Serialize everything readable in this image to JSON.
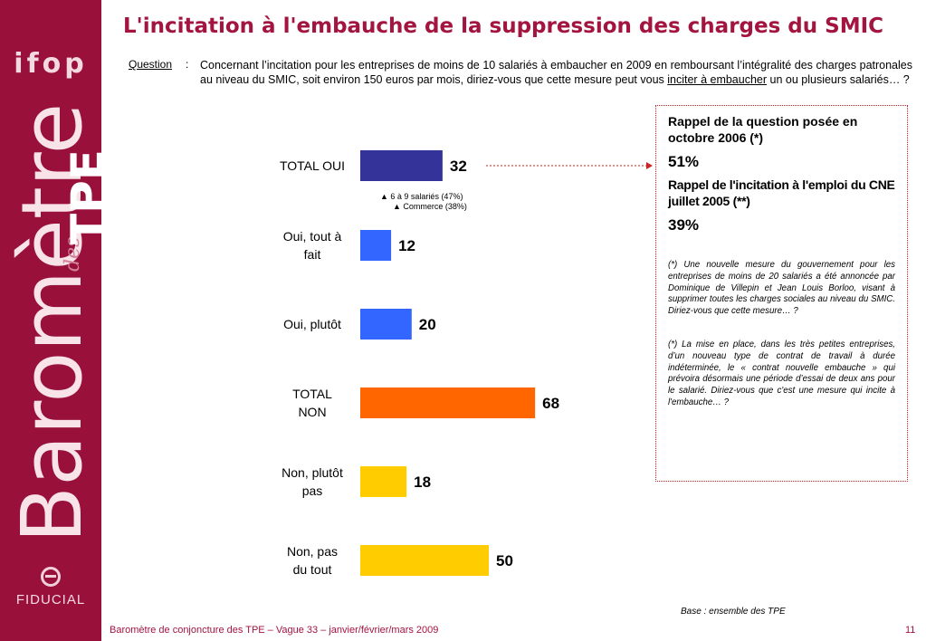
{
  "sidebar": {
    "logo_text": "ifop",
    "barometre_word": "Baromètre",
    "des_word": "des",
    "tpe_word": "TPE",
    "brand_text": "FIDUCIAL",
    "background_color": "#99103a"
  },
  "title": "L'incitation à l'embauche de la suppression des charges du SMIC",
  "question": {
    "label": "Question",
    "colon": ":",
    "text_part1": "Concernant l’incitation pour les entreprises de moins de 10 salariés à embaucher en 2009 en remboursant l’intégralité des charges patronales au niveau du SMIC, soit environ 150 euros par mois, diriez-vous que cette mesure peut vous ",
    "text_underlined": "inciter à embaucher",
    "text_part2": " un ou plusieurs salariés… ?"
  },
  "chart_data": {
    "type": "bar",
    "orientation": "horizontal",
    "categories": [
      "TOTAL OUI",
      "Oui, tout à fait",
      "Oui, plutôt",
      "TOTAL NON",
      "Non, plutôt pas",
      "Non, pas du tout"
    ],
    "category_lines": [
      [
        "TOTAL OUI"
      ],
      [
        "Oui, tout à",
        "fait"
      ],
      [
        "Oui, plutôt"
      ],
      [
        "TOTAL",
        "NON"
      ],
      [
        "Non, plutôt",
        "pas"
      ],
      [
        "Non, pas",
        "du tout"
      ]
    ],
    "values": [
      32,
      12,
      20,
      68,
      18,
      50
    ],
    "colors": [
      "#333399",
      "#3366ff",
      "#3366ff",
      "#ff6600",
      "#ffcc00",
      "#ffcc00"
    ],
    "xlim": [
      0,
      100
    ],
    "annotations": [
      "6 à 9 salariés (47%)",
      "Commerce (38%)"
    ],
    "annotation_marker": "▲",
    "connector_color": "#cc2222"
  },
  "rappel": {
    "title1": "Rappel de la question posée en octobre 2006 (*)",
    "value1": "51%",
    "title2": "Rappel de l'incitation à l'emploi du CNE juillet 2005 (**)",
    "value2": "39%",
    "note1": "(*) Une nouvelle mesure du gouvernement pour les entreprises de moins de 20 salariés a été annoncée par Dominique de Villepin et Jean Louis Borloo, visant à supprimer toutes les charges sociales au niveau du SMIC. Diriez-vous que cette mesure… ?",
    "note2": "(*) La mise en place, dans les très petites entreprises, d’un nouveau type de contrat de travail à durée indéterminée, le « contrat nouvelle embauche » qui prévoira désormais une période d’essai de deux ans pour le salarié. Diriez-vous que c'est une mesure qui incite à l'embauche… ?"
  },
  "base_note": "Base : ensemble des TPE",
  "footer": {
    "text": "Baromètre de conjoncture des TPE – Vague 33 – janvier/février/mars 2009",
    "page_number": "11"
  }
}
